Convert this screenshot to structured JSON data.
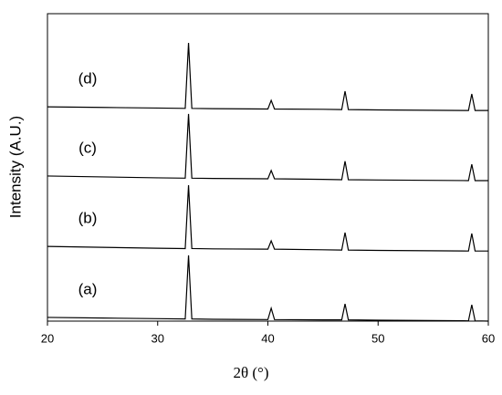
{
  "chart_data": {
    "type": "line",
    "xlabel": "2θ (°)",
    "ylabel": "Intensity (A.U.)",
    "x": [
      20,
      25,
      30,
      32.5,
      32.8,
      33.1,
      35,
      40,
      40.3,
      40.6,
      45,
      46.7,
      47,
      47.3,
      50,
      58.2,
      58.5,
      58.8,
      60
    ],
    "series": [
      {
        "name": "(a)",
        "color": "#000000",
        "values": [
          1.2,
          1.0,
          0.8,
          0.7,
          21.4,
          0.7,
          0.6,
          0.5,
          4.2,
          0.5,
          0.4,
          0.4,
          5.6,
          0.4,
          0.3,
          0.1,
          5.3,
          0.1,
          0
        ]
      },
      {
        "name": "(b)",
        "color": "#000000",
        "values": [
          24.3,
          24.0,
          23.7,
          23.6,
          44.2,
          23.6,
          23.5,
          23.4,
          26.1,
          23.4,
          23.2,
          23.1,
          28.8,
          23.1,
          23.0,
          22.8,
          28.5,
          22.8,
          22.8
        ]
      },
      {
        "name": "(c)",
        "color": "#000000",
        "values": [
          47.2,
          46.9,
          46.6,
          46.5,
          67.4,
          46.5,
          46.4,
          46.3,
          49,
          46.3,
          46.1,
          46,
          52,
          46,
          45.9,
          45.7,
          51,
          45.7,
          45.7
        ]
      },
      {
        "name": "(d)",
        "color": "#000000",
        "values": [
          69.7,
          69.5,
          69.3,
          69.2,
          90.5,
          69.2,
          69.1,
          69,
          71.8,
          69,
          68.9,
          68.8,
          74.8,
          68.8,
          68.7,
          68.5,
          73.9,
          68.5,
          68.5
        ]
      }
    ],
    "xlim": [
      20,
      60
    ],
    "xticks": [
      20,
      30,
      40,
      50,
      60
    ],
    "ylim": [
      0,
      100
    ]
  }
}
